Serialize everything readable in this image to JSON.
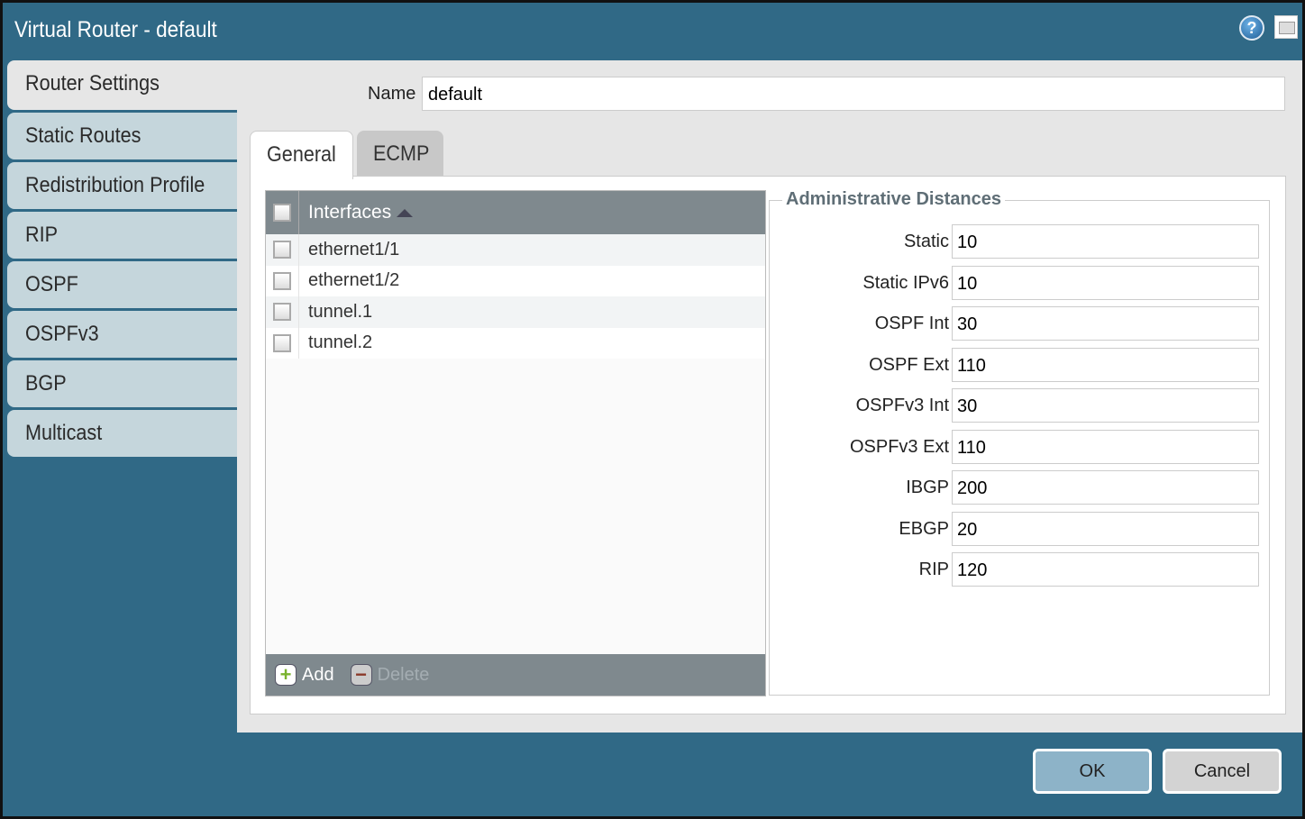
{
  "window": {
    "title": "Virtual Router - default"
  },
  "sidebar": {
    "items": [
      {
        "label": "Router Settings"
      },
      {
        "label": "Static Routes"
      },
      {
        "label": "Redistribution Profile"
      },
      {
        "label": "RIP"
      },
      {
        "label": "OSPF"
      },
      {
        "label": "OSPFv3"
      },
      {
        "label": "BGP"
      },
      {
        "label": "Multicast"
      }
    ]
  },
  "name": {
    "label": "Name",
    "value": "default"
  },
  "tabs": [
    {
      "label": "General"
    },
    {
      "label": "ECMP"
    }
  ],
  "interfaces": {
    "header": "Interfaces",
    "rows": [
      "ethernet1/1",
      "ethernet1/2",
      "tunnel.1",
      "tunnel.2"
    ],
    "add": "Add",
    "delete": "Delete"
  },
  "admin": {
    "title": "Administrative Distances",
    "fields": [
      {
        "label": "Static",
        "value": "10"
      },
      {
        "label": "Static IPv6",
        "value": "10"
      },
      {
        "label": "OSPF Int",
        "value": "30"
      },
      {
        "label": "OSPF Ext",
        "value": "110"
      },
      {
        "label": "OSPFv3 Int",
        "value": "30"
      },
      {
        "label": "OSPFv3 Ext",
        "value": "110"
      },
      {
        "label": "IBGP",
        "value": "200"
      },
      {
        "label": "EBGP",
        "value": "20"
      },
      {
        "label": "RIP",
        "value": "120"
      }
    ]
  },
  "buttons": {
    "ok": "OK",
    "cancel": "Cancel"
  },
  "colors": {
    "header": "#306986",
    "grid_header": "#7f898e",
    "sidebar_item": "#c5d6dc"
  }
}
